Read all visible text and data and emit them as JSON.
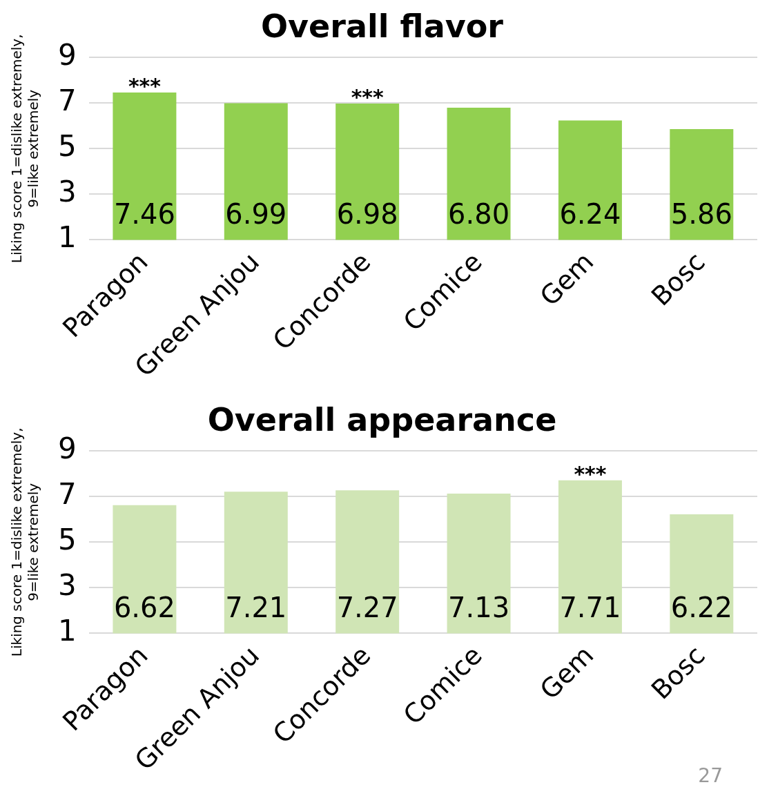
{
  "chart_data": [
    {
      "type": "bar",
      "title": "Overall flavor",
      "ylabel": "Liking score 1=dislike extremely,\n9=like extremely",
      "categories": [
        "Paragon",
        "Green Anjou",
        "Concorde",
        "Comice",
        "Gem",
        "Bosc"
      ],
      "values": [
        7.46,
        6.99,
        6.98,
        6.8,
        6.24,
        5.86
      ],
      "value_labels": [
        "7.46",
        "6.99",
        "6.98",
        "6.80",
        "6.24",
        "5.86"
      ],
      "color": "#92d050",
      "ylim": [
        1,
        9
      ],
      "yticks": [
        1,
        3,
        5,
        7,
        9
      ],
      "grid": "y",
      "legend": false,
      "annotations": [
        {
          "text": "***",
          "x": "Paragon",
          "y": 7.46
        },
        {
          "text": "***",
          "x": "Concorde",
          "y": 6.98
        }
      ]
    },
    {
      "type": "bar",
      "title": "Overall appearance",
      "ylabel": "Liking score 1=dislike extremely,\n9=like extremely",
      "categories": [
        "Paragon",
        "Green Anjou",
        "Concorde",
        "Comice",
        "Gem",
        "Bosc"
      ],
      "values": [
        6.62,
        7.21,
        7.27,
        7.13,
        7.71,
        6.22
      ],
      "value_labels": [
        "6.62",
        "7.21",
        "7.27",
        "7.13",
        "7.71",
        "6.22"
      ],
      "color": "#d0e5b5",
      "ylim": [
        1,
        9
      ],
      "yticks": [
        1,
        3,
        5,
        7,
        9
      ],
      "grid": "y",
      "legend": false,
      "annotations": [
        {
          "text": "***",
          "x": "Gem",
          "y": 7.71
        },
        "27"
      ]
    }
  ]
}
